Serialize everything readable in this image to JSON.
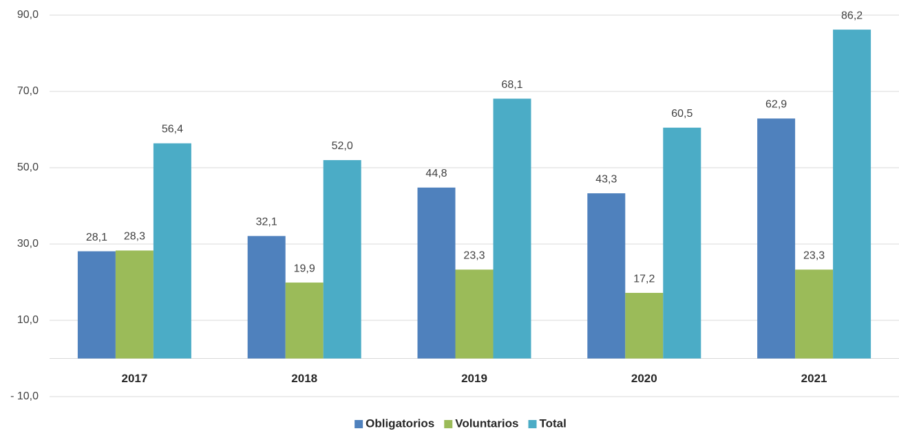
{
  "chart_data": {
    "type": "bar",
    "categories": [
      "2017",
      "2018",
      "2019",
      "2020",
      "2021"
    ],
    "series": [
      {
        "name": "Obligatorios",
        "color": "#4f81bd",
        "values": [
          28.1,
          32.1,
          44.8,
          43.3,
          62.9
        ],
        "value_labels": [
          "28,1",
          "32,1",
          "44,8",
          "43,3",
          "62,9"
        ]
      },
      {
        "name": "Voluntarios",
        "color": "#9bbb59",
        "values": [
          28.3,
          19.9,
          23.3,
          17.2,
          23.3
        ],
        "value_labels": [
          "28,3",
          "19,9",
          "23,3",
          "17,2",
          "23,3"
        ]
      },
      {
        "name": "Total",
        "color": "#4bacc6",
        "values": [
          56.4,
          52.0,
          68.1,
          60.5,
          86.2
        ],
        "value_labels": [
          "56,4",
          "52,0",
          "68,1",
          "60,5",
          "86,2"
        ]
      }
    ],
    "ylim": [
      -10,
      90
    ],
    "yticks": [
      {
        "value": 90,
        "label": "90,0"
      },
      {
        "value": 70,
        "label": "70,0"
      },
      {
        "value": 50,
        "label": "50,0"
      },
      {
        "value": 30,
        "label": "30,0"
      },
      {
        "value": 10,
        "label": "10,0"
      },
      {
        "value": -10,
        "label": "- 10,0"
      }
    ],
    "grid": true,
    "legend": "bottom"
  }
}
